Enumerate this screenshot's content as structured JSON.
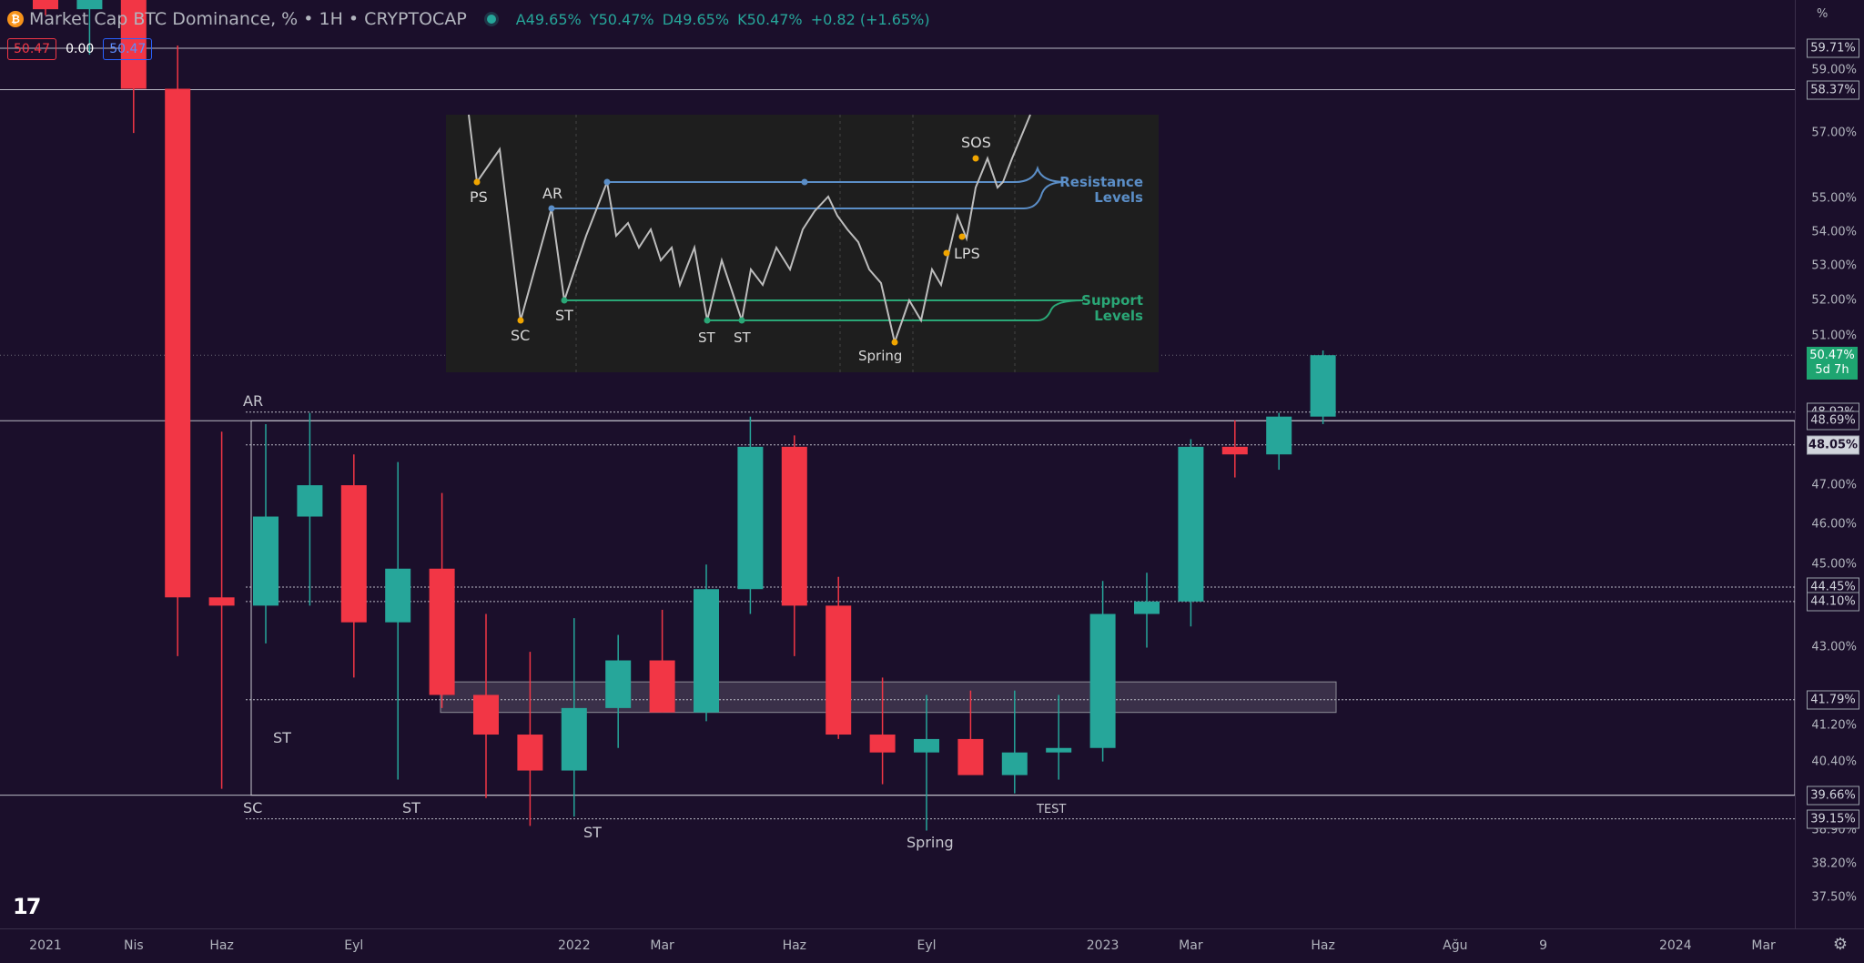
{
  "header": {
    "title": "Market Cap BTC Dominance, % • 1H • CRYPTOCAP",
    "ohlc": [
      "A49.65%",
      "Y50.47%",
      "D49.65%",
      "K50.47%",
      "+0.82 (+1.65%)"
    ],
    "price_left": "50.47",
    "price_mid": "0.00",
    "price_right": "50.47"
  },
  "axis": {
    "unit": "%",
    "price_labels": [
      "59.00%",
      "57.00%",
      "55.00%",
      "54.00%",
      "53.00%",
      "52.00%",
      "51.00%",
      "47.00%",
      "46.00%",
      "45.00%",
      "43.00%",
      "41.20%",
      "40.40%",
      "38.90%",
      "38.20%",
      "37.50%"
    ],
    "price_values": [
      59.0,
      57.0,
      55.0,
      54.0,
      53.0,
      52.0,
      51.0,
      47.0,
      46.0,
      45.0,
      43.0,
      41.2,
      40.4,
      38.9,
      38.2,
      37.5
    ],
    "tags": [
      "59.71%",
      "58.37%",
      "48.92%",
      "48.69%",
      "48.05%",
      "44.45%",
      "44.10%",
      "41.79%",
      "39.66%",
      "39.15%"
    ],
    "tag_values": [
      59.71,
      58.37,
      48.92,
      48.69,
      48.05,
      44.45,
      44.1,
      41.79,
      39.66,
      39.15
    ],
    "current": {
      "value": "50.47%",
      "countdown": "5d 7h",
      "level": 50.47
    },
    "time_labels": [
      "2021",
      "Nis",
      "Haz",
      "Eyl",
      "2022",
      "Mar",
      "Haz",
      "Eyl",
      "2023",
      "Mar",
      "Haz",
      "Ağu",
      "9",
      "2024",
      "Mar"
    ],
    "time_x": [
      0.5,
      2.5,
      4.5,
      7.5,
      12.5,
      14.5,
      17.5,
      20.5,
      24.5,
      26.5,
      29.5,
      32.5,
      34.5,
      37.5,
      39.5
    ]
  },
  "annotations": {
    "ar": "AR",
    "sc": "SC",
    "st1": "ST",
    "st2": "ST",
    "st3": "ST",
    "spring": "Spring",
    "test": "TEST"
  },
  "inset": {
    "ps": "PS",
    "ar": "AR",
    "sc": "SC",
    "st1": "ST",
    "st2": "ST",
    "st3": "ST",
    "spring": "Spring",
    "lps": "LPS",
    "sos": "SOS",
    "resistance_l1": "Resistance",
    "resistance_l2": "Levels",
    "support_l1": "Support",
    "support_l2": "Levels"
  },
  "chart_data": {
    "type": "candlestick",
    "title": "Market Cap BTC Dominance, % • 1H • CRYPTOCAP",
    "xlabel": "",
    "ylabel": "%",
    "scale": "log",
    "ylim": [
      37.3,
      62.5
    ],
    "x": [
      "2021-01",
      "2021-02",
      "2021-03",
      "2021-04",
      "2021-05",
      "2021-06",
      "2021-07",
      "2021-08",
      "2021-09",
      "2021-10",
      "2021-11",
      "2021-12",
      "2022-01",
      "2022-02",
      "2022-03",
      "2022-04",
      "2022-05",
      "2022-06",
      "2022-07",
      "2022-08",
      "2022-09",
      "2022-10",
      "2022-11",
      "2022-12",
      "2023-01",
      "2023-02",
      "2023-03",
      "2023-04",
      "2023-05",
      "2023-06"
    ],
    "open": [
      70.0,
      61.0,
      61.5,
      58.4,
      44.2,
      44.0,
      46.2,
      47.0,
      43.6,
      44.9,
      41.9,
      41.0,
      40.2,
      41.6,
      42.7,
      41.5,
      44.4,
      48.0,
      44.0,
      41.0,
      40.6,
      40.9,
      40.1,
      40.6,
      40.7,
      43.8,
      44.1,
      48.0,
      47.8,
      48.8
    ],
    "high": [
      72.5,
      62.5,
      62.0,
      59.8,
      48.4,
      48.6,
      48.9,
      47.8,
      47.6,
      46.8,
      43.8,
      42.9,
      43.7,
      43.3,
      43.9,
      45.0,
      48.8,
      48.3,
      44.7,
      42.3,
      41.9,
      42.0,
      42.0,
      41.9,
      44.6,
      44.8,
      48.2,
      48.7,
      48.9,
      50.6
    ],
    "high_note": "",
    "low": [
      60.8,
      59.5,
      57.0,
      42.8,
      39.8,
      43.1,
      44.0,
      42.3,
      40.0,
      41.6,
      39.6,
      39.0,
      39.2,
      40.7,
      41.5,
      41.3,
      43.8,
      42.8,
      40.9,
      39.9,
      38.9,
      40.2,
      39.7,
      40.0,
      40.4,
      43.0,
      43.5,
      47.2,
      47.4,
      48.6
    ],
    "close": [
      61.0,
      61.5,
      58.4,
      44.2,
      44.0,
      46.2,
      47.0,
      43.6,
      44.9,
      41.9,
      41.0,
      40.2,
      41.6,
      42.7,
      41.5,
      44.4,
      48.0,
      44.0,
      41.0,
      40.6,
      40.9,
      40.1,
      40.6,
      40.7,
      43.8,
      44.1,
      48.0,
      47.8,
      48.8,
      50.47
    ],
    "horizontal_levels": [
      59.71,
      58.37,
      48.92,
      48.69,
      48.05,
      44.45,
      44.1,
      41.79,
      39.66,
      39.15
    ],
    "range_box": {
      "top": 48.69,
      "bottom": 39.66
    },
    "zone_box": {
      "top": 42.2,
      "bottom": 41.5
    },
    "colors": {
      "up": "#26a69a",
      "down": "#f23645",
      "background": "#1b0f2b",
      "grid_line": "#d1d4dc"
    }
  }
}
